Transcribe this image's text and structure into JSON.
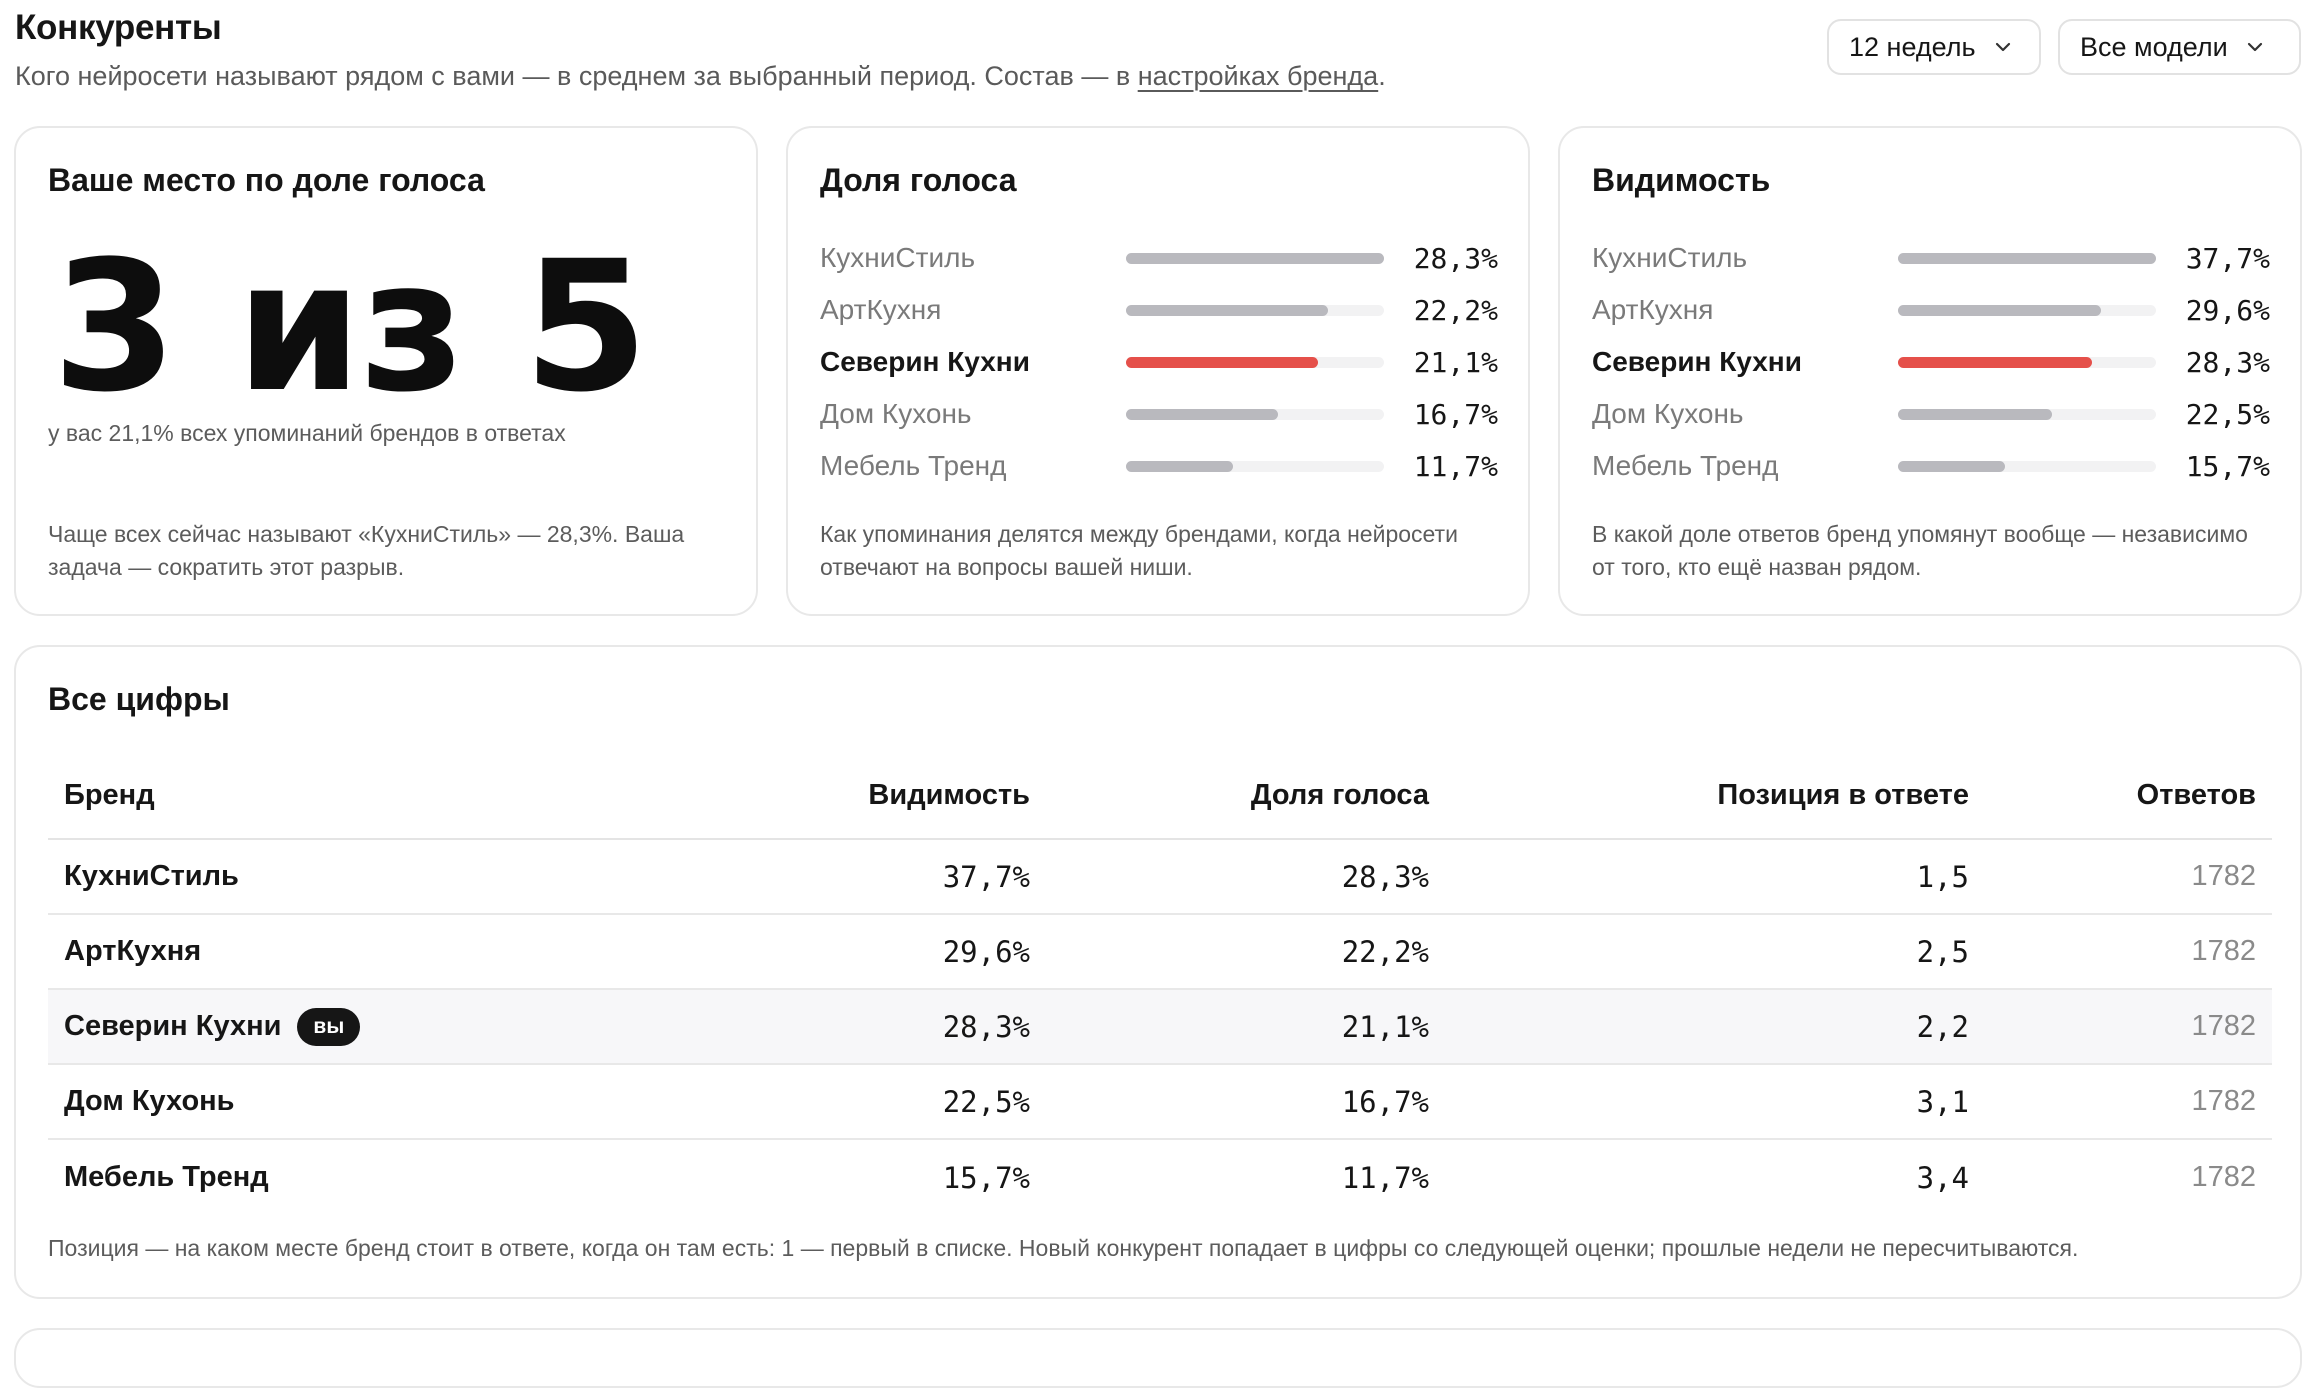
{
  "header": {
    "title": "Конкуренты",
    "subtitle_before": "Кого нейросети называют рядом с вами — в среднем за выбранный период. Состав — в ",
    "subtitle_link": "настройках бренда",
    "subtitle_after": "."
  },
  "filters": {
    "period": "12 недель",
    "models": "Все модели"
  },
  "rank_card": {
    "title": "Ваше место по доле голоса",
    "rank": "3 из 5",
    "note": "у вас 21,1% всех упоминаний брендов в ответах",
    "footer": "Чаще всех сейчас называют «КухниСтиль» — 28,3%. Ваша задача — сократить этот разрыв."
  },
  "share_card": {
    "title": "Доля голоса",
    "footer": "Как упоминания делятся между брендами, когда нейросети отвечают на вопросы вашей ниши.",
    "rows": [
      {
        "name": "КухниСтиль",
        "value": 28.3,
        "label": "28,3%",
        "me": false
      },
      {
        "name": "АртКухня",
        "value": 22.2,
        "label": "22,2%",
        "me": false
      },
      {
        "name": "Северин Кухни",
        "value": 21.1,
        "label": "21,1%",
        "me": true
      },
      {
        "name": "Дом Кухонь",
        "value": 16.7,
        "label": "16,7%",
        "me": false
      },
      {
        "name": "Мебель Тренд",
        "value": 11.7,
        "label": "11,7%",
        "me": false
      }
    ]
  },
  "visibility_card": {
    "title": "Видимость",
    "footer": "В какой доле ответов бренд упомянут вообще — независимо от того, кто ещё назван рядом.",
    "rows": [
      {
        "name": "КухниСтиль",
        "value": 37.7,
        "label": "37,7%",
        "me": false
      },
      {
        "name": "АртКухня",
        "value": 29.6,
        "label": "29,6%",
        "me": false
      },
      {
        "name": "Северин Кухни",
        "value": 28.3,
        "label": "28,3%",
        "me": true
      },
      {
        "name": "Дом Кухонь",
        "value": 22.5,
        "label": "22,5%",
        "me": false
      },
      {
        "name": "Мебель Тренд",
        "value": 15.7,
        "label": "15,7%",
        "me": false
      }
    ]
  },
  "table": {
    "title": "Все цифры",
    "headers": {
      "brand": "Бренд",
      "visibility": "Видимость",
      "share": "Доля голоса",
      "position": "Позиция в ответе",
      "answers": "Ответов"
    },
    "you_badge": "вы",
    "rows": [
      {
        "brand": "КухниСтиль",
        "visibility": "37,7%",
        "share": "28,3%",
        "position": "1,5",
        "answers": "1782",
        "me": false
      },
      {
        "brand": "АртКухня",
        "visibility": "29,6%",
        "share": "22,2%",
        "position": "2,5",
        "answers": "1782",
        "me": false
      },
      {
        "brand": "Северин Кухни",
        "visibility": "28,3%",
        "share": "21,1%",
        "position": "2,2",
        "answers": "1782",
        "me": true
      },
      {
        "brand": "Дом Кухонь",
        "visibility": "22,5%",
        "share": "16,7%",
        "position": "3,1",
        "answers": "1782",
        "me": false
      },
      {
        "brand": "Мебель Тренд",
        "visibility": "15,7%",
        "share": "11,7%",
        "position": "3,4",
        "answers": "1782",
        "me": false
      }
    ],
    "note": "Позиция — на каком месте бренд стоит в ответе, когда он там есть: 1 — первый в списке. Новый конкурент попадает в цифры со следующей оценки; прошлые недели не пересчитываются."
  },
  "colors": {
    "accent": "#e5504a",
    "bar_default": "#b9b9be",
    "bar_track": "#f2f2f3"
  }
}
